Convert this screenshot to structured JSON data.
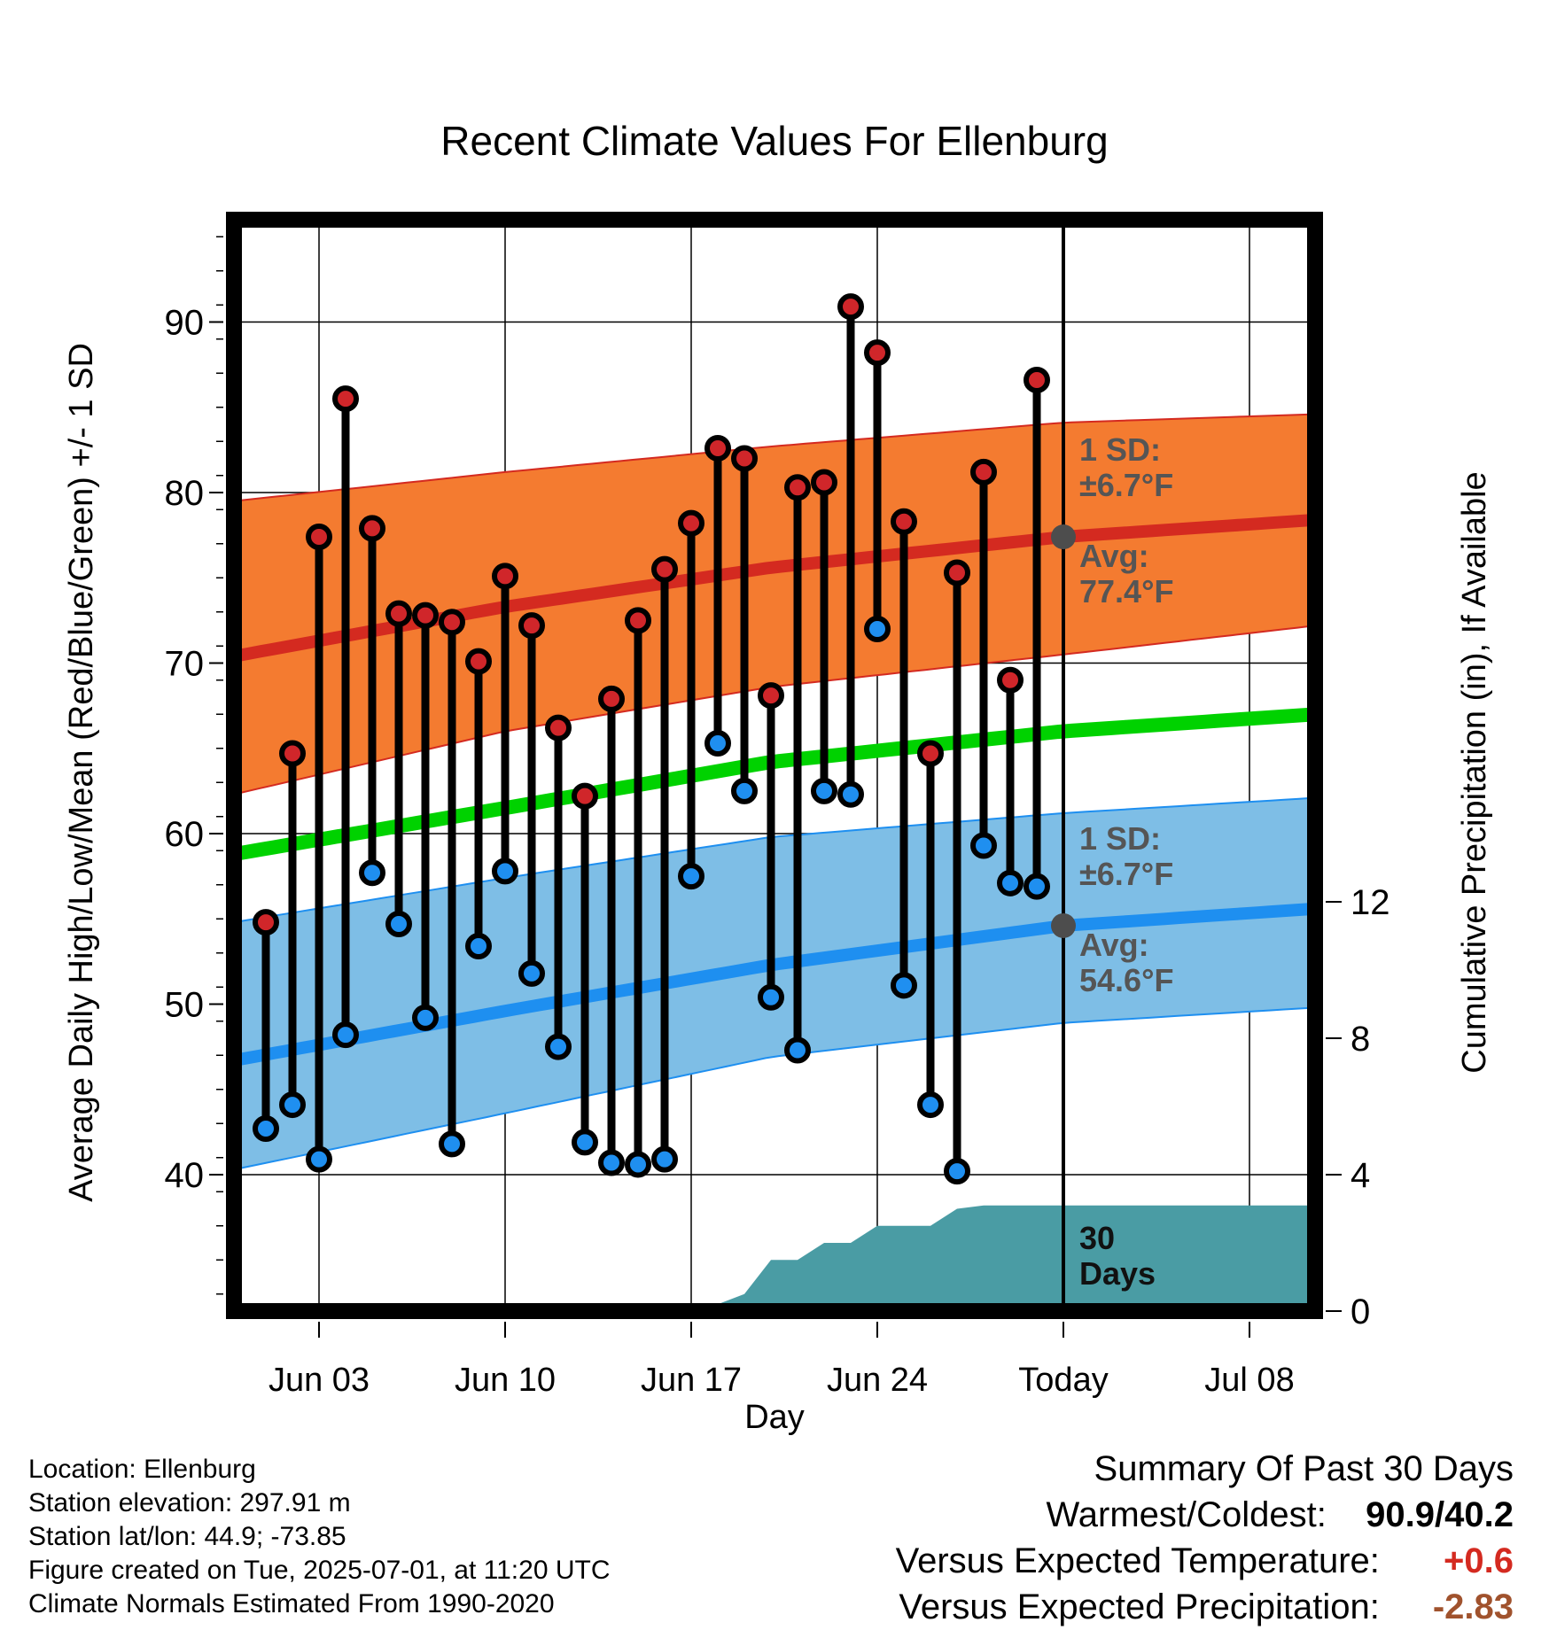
{
  "chart_data": {
    "type": "line",
    "title": "Recent Climate Values For Ellenburg",
    "xlabel": "Day",
    "ylabel": "Average Daily High/Low/Mean (Red/Blue/Green) +/- 1 SD",
    "y2label": "Cumulative Precipitation (in), If Available",
    "x_ticks": [
      {
        "day": 3,
        "label": "Jun 03"
      },
      {
        "day": 10,
        "label": "Jun 10"
      },
      {
        "day": 17,
        "label": "Jun 17"
      },
      {
        "day": 24,
        "label": "Jun 24"
      },
      {
        "day": 31,
        "label": "Today"
      },
      {
        "day": 38,
        "label": "Jul 08"
      }
    ],
    "x_range": [
      -0.2,
      40.5
    ],
    "ylim": [
      32,
      96
    ],
    "y_ticks": [
      40,
      50,
      60,
      70,
      80,
      90
    ],
    "y2lim": [
      0,
      32
    ],
    "y2_ticks": [
      0,
      4,
      8,
      12
    ],
    "grid": true,
    "observations": {
      "days": [
        1,
        2,
        3,
        4,
        5,
        6,
        7,
        8,
        9,
        10,
        11,
        12,
        13,
        14,
        15,
        16,
        17,
        18,
        19,
        20,
        21,
        22,
        23,
        24,
        25,
        26,
        27,
        28,
        29,
        30
      ],
      "high": [
        54.8,
        64.7,
        77.4,
        85.5,
        77.9,
        72.9,
        72.8,
        72.4,
        70.1,
        75.1,
        72.2,
        66.2,
        62.2,
        67.9,
        72.5,
        75.5,
        78.2,
        82.6,
        82.0,
        68.1,
        80.3,
        80.6,
        90.9,
        88.2,
        78.3,
        64.7,
        75.3,
        81.2,
        69.0,
        86.6
      ],
      "low": [
        42.7,
        44.1,
        40.9,
        48.2,
        57.7,
        54.7,
        49.2,
        41.8,
        53.4,
        57.8,
        51.8,
        47.5,
        41.9,
        40.7,
        40.6,
        40.9,
        57.5,
        65.3,
        62.5,
        50.4,
        47.3,
        62.5,
        62.3,
        72.0,
        51.1,
        44.1,
        40.2,
        59.3,
        57.1,
        56.9
      ]
    },
    "normals": {
      "days": [
        -0.2,
        10,
        20,
        31,
        40.5
      ],
      "high_avg": [
        70.4,
        73.3,
        75.6,
        77.4,
        78.4
      ],
      "high_upper": [
        79.5,
        81.2,
        82.7,
        84.1,
        84.6
      ],
      "high_lower": [
        62.3,
        66.0,
        68.6,
        70.5,
        72.2
      ],
      "low_avg": [
        46.7,
        49.6,
        52.3,
        54.6,
        55.6
      ],
      "low_upper": [
        54.8,
        57.4,
        59.8,
        61.2,
        62.1
      ],
      "low_lower": [
        40.3,
        43.6,
        46.9,
        48.9,
        49.8
      ],
      "mean": [
        58.8,
        61.5,
        64.2,
        66.0,
        67.0
      ]
    },
    "precipitation": {
      "days": [
        -0.2,
        10.5,
        11.5,
        17,
        18,
        19,
        20,
        21,
        22,
        23,
        24,
        25,
        26,
        27,
        28,
        30,
        31,
        40.5
      ],
      "cumulative": [
        0,
        0,
        0.12,
        0.12,
        0.2,
        0.5,
        1.5,
        1.5,
        2.0,
        2.0,
        2.5,
        2.5,
        2.5,
        3.0,
        3.1,
        3.1,
        3.1,
        3.1
      ]
    },
    "today_marker": {
      "day": 31,
      "high_sd_label": "1 SD:",
      "high_sd_value": "±6.7°F",
      "high_avg_label": "Avg:",
      "high_avg_value": "77.4°F",
      "low_sd_label": "1 SD:",
      "low_sd_value": "±6.7°F",
      "low_avg_label": "Avg:",
      "low_avg_value": "54.6°F",
      "precip_days_1": "30",
      "precip_days_2": "Days"
    },
    "colors": {
      "high_band": "#f47b30",
      "high_line": "#d42a20",
      "low_band": "#7ebee6",
      "low_line": "#1e8ff0",
      "mean_line": "#00d200",
      "precip_fill": "#4a9ca4",
      "high_dot": "#d0262a",
      "low_dot": "#1f8ff0",
      "today_dot": "#4d4d4d",
      "annotation_text": "#555555"
    }
  },
  "footer": {
    "location": "Location: Ellenburg",
    "elevation": "Station elevation: 297.91 m",
    "latlon": "Station lat/lon: 44.9; -73.85",
    "created": "Figure created on Tue, 2025-07-01, at 11:20 UTC",
    "normals": "Climate Normals Estimated From 1990-2020"
  },
  "summary": {
    "title": "Summary Of Past 30 Days",
    "warm_cold_label": "Warmest/Coldest:",
    "warm_cold_value": "90.9/40.2",
    "temp_label": "Versus Expected Temperature:",
    "temp_value": "+0.6",
    "temp_color": "#d42a20",
    "precip_label": "Versus Expected Precipitation:",
    "precip_value": "-2.83",
    "precip_color": "#a0522d"
  }
}
